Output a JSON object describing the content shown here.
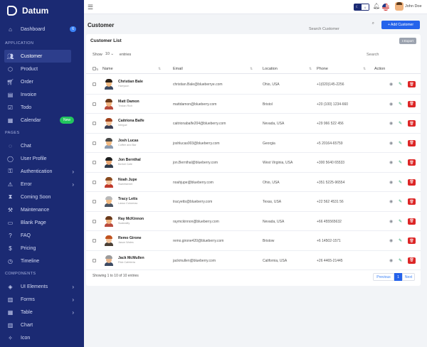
{
  "brand": {
    "name": "Datum"
  },
  "sidebar": {
    "dashboard": {
      "label": "Dashboard",
      "badge": "6"
    },
    "sections": [
      {
        "title": "APPLICATION"
      },
      {
        "title": "PAGES"
      },
      {
        "title": "COMPONENTS"
      }
    ],
    "application": [
      {
        "label": "Customer",
        "icon": "users-icon"
      },
      {
        "label": "Product",
        "icon": "tag-icon"
      },
      {
        "label": "Order",
        "icon": "cart-icon"
      },
      {
        "label": "Invoice",
        "icon": "file-icon"
      },
      {
        "label": "Todo",
        "icon": "checklist-icon"
      },
      {
        "label": "Calendar",
        "icon": "calendar-icon",
        "badge": "New"
      }
    ],
    "pages": [
      {
        "label": "Chat",
        "icon": "chat-icon"
      },
      {
        "label": "User Profile",
        "icon": "user-icon"
      },
      {
        "label": "Authentication",
        "icon": "lock-icon"
      },
      {
        "label": "Error",
        "icon": "warning-icon"
      },
      {
        "label": "Coming Soon",
        "icon": "hourglass-icon"
      },
      {
        "label": "Maintenance",
        "icon": "wrench-icon"
      },
      {
        "label": "Blank Page",
        "icon": "page-icon"
      },
      {
        "label": "FAQ",
        "icon": "question-icon"
      },
      {
        "label": "Pricing",
        "icon": "dollar-icon"
      },
      {
        "label": "Timeline",
        "icon": "clock-icon"
      }
    ],
    "components": [
      {
        "label": "UI Elements",
        "icon": "layers-icon"
      },
      {
        "label": "Forms",
        "icon": "form-icon"
      },
      {
        "label": "Table",
        "icon": "table-icon"
      },
      {
        "label": "Chart",
        "icon": "chart-icon"
      },
      {
        "label": "Icon",
        "icon": "star-icon"
      }
    ]
  },
  "topbar": {
    "user_name": "John Doe"
  },
  "page": {
    "title": "Customer",
    "search_placeholder": "Search Customer",
    "add_button": "+ Add Customer"
  },
  "card": {
    "title": "Customer List",
    "export_label": "Export",
    "show_label": "Show",
    "entries_value": "10",
    "entries_label": "entries",
    "search_placeholder": "Search",
    "headers": {
      "name": "Name",
      "email": "Email",
      "location": "Location",
      "phone": "Phone",
      "action": "Action"
    },
    "footer": "Showing 1 to 10 of 10 entries",
    "pager": {
      "prev": "Previous",
      "page": "1",
      "next": "Next"
    }
  },
  "customers": [
    {
      "name": "Christian Bale",
      "role": "Harryson",
      "email": "christian.Bale@blueberrye.com",
      "location": "Ohio, USA",
      "phone": "+1(020)145-2256",
      "hair": "#2b2018",
      "shirt": "#3c4a63",
      "skin": "#f1b981"
    },
    {
      "name": "Matt Damon",
      "role": "Tristan Rich",
      "email": "mattdamon@blueberry.com",
      "location": "Bristol",
      "phone": "+20 (100) 1234-660",
      "hair": "#6b3a1a",
      "shirt": "#b94a3c",
      "skin": "#f0b37e"
    },
    {
      "name": "Caitriona Balfe",
      "role": "Intrigue",
      "email": "caitrionabalfe204@blueberry.com",
      "location": "Nevada, USA",
      "phone": "+29 966 522 456",
      "hair": "#a0411c",
      "shirt": "#3b3f55",
      "skin": "#f3c49c"
    },
    {
      "name": "Josh Lucas",
      "role": "Coffee and Bar",
      "email": "joshlucas003@blueberry.com",
      "location": "Georgia",
      "phone": "+5 20164-65759",
      "hair": "#4a4a4a",
      "shirt": "#8b9bb0",
      "skin": "#f1b981"
    },
    {
      "name": "Jon Bernthal",
      "role": "Bertoli Cafe",
      "email": "jon.Bernthal@blueberry.com",
      "location": "West Virginia, USA",
      "phone": "+300 5640 65533",
      "hair": "#1f1f1f",
      "shirt": "#2f3a4a",
      "skin": "#e9a774"
    },
    {
      "name": "Noah Jupe",
      "role": "Sweetstreet",
      "email": "noahjupe@blueberry.com",
      "location": "Ohio, USA",
      "phone": "+351 5225-96554",
      "hair": "#8a4b20",
      "shirt": "#c0392b",
      "skin": "#f3c49c"
    },
    {
      "name": "Tracy Letts",
      "role": "Lasso Colormac",
      "email": "tracyetts@blueberry.com",
      "location": "Texas, USA",
      "phone": "+22 562 4531 56",
      "hair": "#b8b8b8",
      "shirt": "#4b5563",
      "skin": "#f1b981"
    },
    {
      "name": "Ray McKinnon",
      "role": "Scaleality",
      "email": "raymckinnon@blueberry.com",
      "location": "Nevada, USA",
      "phone": "+66 455565632",
      "hair": "#6b3a1a",
      "shirt": "#b94a3c",
      "skin": "#f0b37e"
    },
    {
      "name": "Remo Girone",
      "role": "Jason Wales",
      "email": "remo.girone420@blueberry.com",
      "location": "Bristow",
      "phone": "+6 14502-1571",
      "hair": "#c0521f",
      "shirt": "#4a3f35",
      "skin": "#f3c49c"
    },
    {
      "name": "Jack McMullen",
      "role": "Rick Cafeteria",
      "email": "jackmullen@blueberry.com",
      "location": "California, USA",
      "phone": "+26 4465-21445",
      "hair": "#9b9b9b",
      "shirt": "#3c4a63",
      "skin": "#e9b48a"
    }
  ]
}
